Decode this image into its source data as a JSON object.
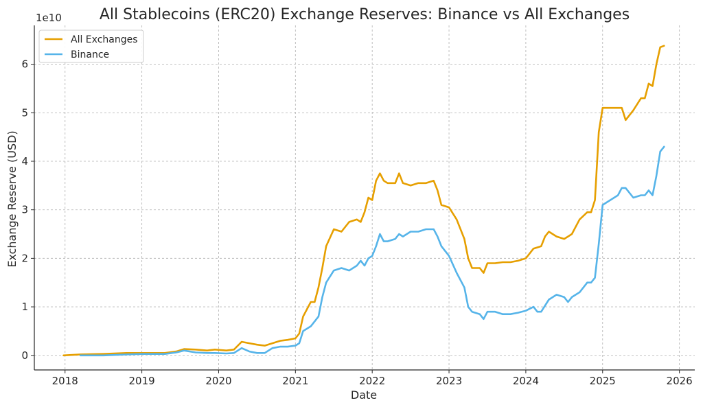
{
  "chart_data": {
    "type": "line",
    "title": "All Stablecoins (ERC20) Exchange Reserves: Binance vs All Exchanges",
    "xlabel": "Date",
    "ylabel": "Exchange Reserve (USD)",
    "y_scale_label": "1e10",
    "xlim": [
      2017.6,
      2026.2
    ],
    "ylim": [
      -0.3,
      6.8
    ],
    "x_ticks": [
      2018,
      2019,
      2020,
      2021,
      2022,
      2023,
      2024,
      2025,
      2026
    ],
    "x_tick_labels": [
      "2018",
      "2019",
      "2020",
      "2021",
      "2022",
      "2023",
      "2024",
      "2025",
      "2026"
    ],
    "y_ticks": [
      0,
      1,
      2,
      3,
      4,
      5,
      6
    ],
    "y_tick_labels": [
      "0",
      "1",
      "2",
      "3",
      "4",
      "5",
      "6"
    ],
    "grid": true,
    "legend_position": "top-left",
    "series": [
      {
        "name": "All Exchanges",
        "color": "#E69F00",
        "x": [
          2017.98,
          2018.2,
          2018.5,
          2018.8,
          2019.0,
          2019.3,
          2019.45,
          2019.55,
          2019.7,
          2019.85,
          2019.95,
          2020.1,
          2020.2,
          2020.3,
          2020.4,
          2020.5,
          2020.6,
          2020.7,
          2020.8,
          2020.9,
          2021.0,
          2021.05,
          2021.1,
          2021.2,
          2021.25,
          2021.3,
          2021.35,
          2021.4,
          2021.5,
          2021.6,
          2021.7,
          2021.8,
          2021.85,
          2021.9,
          2021.95,
          2022.0,
          2022.05,
          2022.1,
          2022.15,
          2022.2,
          2022.3,
          2022.35,
          2022.4,
          2022.5,
          2022.6,
          2022.7,
          2022.8,
          2022.85,
          2022.9,
          2023.0,
          2023.1,
          2023.2,
          2023.25,
          2023.3,
          2023.4,
          2023.45,
          2023.5,
          2023.6,
          2023.7,
          2023.8,
          2023.9,
          2024.0,
          2024.1,
          2024.2,
          2024.25,
          2024.3,
          2024.4,
          2024.5,
          2024.55,
          2024.6,
          2024.7,
          2024.8,
          2024.85,
          2024.9,
          2024.95,
          2025.0,
          2025.1,
          2025.2,
          2025.25,
          2025.3,
          2025.4,
          2025.5,
          2025.55,
          2025.6,
          2025.65,
          2025.7,
          2025.75,
          2025.8
        ],
        "y": [
          0.0,
          0.02,
          0.03,
          0.05,
          0.05,
          0.05,
          0.08,
          0.13,
          0.12,
          0.1,
          0.12,
          0.1,
          0.12,
          0.28,
          0.25,
          0.22,
          0.2,
          0.25,
          0.3,
          0.32,
          0.35,
          0.45,
          0.8,
          1.1,
          1.1,
          1.4,
          1.8,
          2.25,
          2.6,
          2.55,
          2.75,
          2.8,
          2.75,
          2.95,
          3.25,
          3.2,
          3.6,
          3.75,
          3.6,
          3.55,
          3.55,
          3.75,
          3.55,
          3.5,
          3.55,
          3.55,
          3.6,
          3.4,
          3.1,
          3.05,
          2.8,
          2.4,
          2.0,
          1.8,
          1.8,
          1.7,
          1.9,
          1.9,
          1.92,
          1.92,
          1.95,
          2.0,
          2.2,
          2.25,
          2.45,
          2.55,
          2.45,
          2.4,
          2.45,
          2.5,
          2.8,
          2.95,
          2.95,
          3.2,
          4.6,
          5.1,
          5.1,
          5.1,
          5.1,
          4.85,
          5.05,
          5.3,
          5.3,
          5.6,
          5.55,
          6.0,
          6.35,
          6.38
        ]
      },
      {
        "name": "Binance",
        "color": "#56B4E9",
        "x": [
          2018.2,
          2018.5,
          2018.8,
          2019.0,
          2019.3,
          2019.45,
          2019.55,
          2019.7,
          2019.85,
          2019.95,
          2020.1,
          2020.2,
          2020.3,
          2020.4,
          2020.5,
          2020.6,
          2020.7,
          2020.8,
          2020.9,
          2021.0,
          2021.05,
          2021.1,
          2021.2,
          2021.25,
          2021.3,
          2021.35,
          2021.4,
          2021.5,
          2021.6,
          2021.7,
          2021.8,
          2021.85,
          2021.9,
          2021.95,
          2022.0,
          2022.05,
          2022.1,
          2022.15,
          2022.2,
          2022.3,
          2022.35,
          2022.4,
          2022.5,
          2022.6,
          2022.7,
          2022.8,
          2022.85,
          2022.9,
          2023.0,
          2023.1,
          2023.2,
          2023.25,
          2023.3,
          2023.4,
          2023.45,
          2023.5,
          2023.6,
          2023.7,
          2023.8,
          2023.9,
          2024.0,
          2024.1,
          2024.15,
          2024.2,
          2024.3,
          2024.4,
          2024.5,
          2024.55,
          2024.6,
          2024.7,
          2024.8,
          2024.85,
          2024.9,
          2024.95,
          2025.0,
          2025.1,
          2025.2,
          2025.25,
          2025.3,
          2025.4,
          2025.5,
          2025.55,
          2025.6,
          2025.65,
          2025.7,
          2025.75,
          2025.8
        ],
        "y": [
          0.0,
          0.0,
          0.02,
          0.03,
          0.03,
          0.06,
          0.1,
          0.06,
          0.05,
          0.05,
          0.04,
          0.05,
          0.15,
          0.08,
          0.05,
          0.05,
          0.15,
          0.18,
          0.18,
          0.2,
          0.25,
          0.5,
          0.6,
          0.7,
          0.8,
          1.2,
          1.5,
          1.75,
          1.8,
          1.75,
          1.85,
          1.95,
          1.85,
          2.0,
          2.05,
          2.25,
          2.5,
          2.35,
          2.35,
          2.4,
          2.5,
          2.45,
          2.55,
          2.55,
          2.6,
          2.6,
          2.45,
          2.25,
          2.05,
          1.7,
          1.4,
          1.0,
          0.9,
          0.85,
          0.75,
          0.9,
          0.9,
          0.85,
          0.85,
          0.88,
          0.92,
          1.0,
          0.9,
          0.9,
          1.15,
          1.25,
          1.2,
          1.1,
          1.2,
          1.3,
          1.5,
          1.5,
          1.6,
          2.3,
          3.1,
          3.2,
          3.3,
          3.45,
          3.45,
          3.25,
          3.3,
          3.3,
          3.4,
          3.3,
          3.7,
          4.2,
          4.3
        ]
      }
    ]
  }
}
